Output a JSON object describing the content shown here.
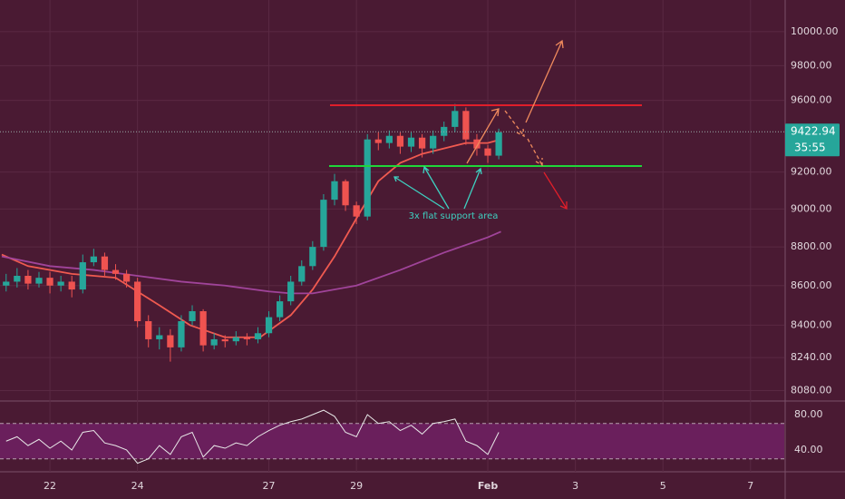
{
  "chart_data": [
    {
      "type": "candlestick",
      "x": [
        21.0,
        21.25,
        21.5,
        21.75,
        22.0,
        22.25,
        22.5,
        22.75,
        23.0,
        23.25,
        23.5,
        23.75,
        24.0,
        24.25,
        24.5,
        24.75,
        25.0,
        25.25,
        25.5,
        25.75,
        26.0,
        26.25,
        26.5,
        26.75,
        27.0,
        27.25,
        27.5,
        27.75,
        28.0,
        28.25,
        28.5,
        28.75,
        29.0,
        29.25,
        29.5,
        29.75,
        30.0,
        30.25,
        30.5,
        30.75,
        31.0,
        31.25,
        31.5,
        31.75,
        32.0,
        32.25
      ],
      "open": [
        8600,
        8620,
        8650,
        8610,
        8640,
        8600,
        8620,
        8580,
        8720,
        8750,
        8680,
        8660,
        8620,
        8420,
        8330,
        8350,
        8290,
        8420,
        8470,
        8300,
        8330,
        8320,
        8340,
        8330,
        8360,
        8440,
        8520,
        8620,
        8700,
        8800,
        9050,
        9150,
        9020,
        8960,
        9380,
        9360,
        9400,
        9340,
        9390,
        9330,
        9400,
        9450,
        9540,
        9380,
        9330,
        9290
      ],
      "high": [
        8660,
        8690,
        8680,
        8670,
        8670,
        8650,
        8650,
        8760,
        8790,
        8770,
        8710,
        8680,
        8640,
        8450,
        8390,
        8380,
        8450,
        8500,
        8480,
        8360,
        8350,
        8370,
        8360,
        8390,
        8470,
        8550,
        8650,
        8730,
        8830,
        9080,
        9190,
        9160,
        9040,
        9410,
        9420,
        9430,
        9420,
        9420,
        9410,
        9430,
        9480,
        9580,
        9560,
        9410,
        9350,
        9440
      ],
      "low": [
        8570,
        8590,
        8580,
        8590,
        8560,
        8570,
        8540,
        8560,
        8700,
        8650,
        8630,
        8590,
        8390,
        8290,
        8280,
        8220,
        8270,
        8400,
        8270,
        8280,
        8290,
        8300,
        8300,
        8310,
        8340,
        8420,
        8500,
        8600,
        8680,
        8780,
        9020,
        8990,
        8920,
        8940,
        9320,
        9330,
        9300,
        9310,
        9280,
        9300,
        9370,
        9420,
        9350,
        9290,
        9250,
        9270
      ],
      "close": [
        8620,
        8650,
        8610,
        8640,
        8600,
        8620,
        8580,
        8720,
        8750,
        8680,
        8660,
        8620,
        8420,
        8330,
        8350,
        8290,
        8420,
        8470,
        8300,
        8330,
        8320,
        8340,
        8330,
        8360,
        8440,
        8520,
        8620,
        8700,
        8800,
        9050,
        9150,
        9020,
        8960,
        9380,
        9360,
        9400,
        9340,
        9390,
        9330,
        9400,
        9450,
        9540,
        9380,
        9330,
        9290,
        9420
      ],
      "up_color": "#26a69a",
      "down_color": "#ef5350",
      "series": [
        {
          "color": "#f05a50",
          "x": [
            20.9,
            21.5,
            22.5,
            23.5,
            24.5,
            25.2,
            26,
            26.8,
            27.5,
            28,
            28.5,
            29,
            29.5,
            30,
            30.5,
            31,
            31.5,
            32,
            32.3
          ],
          "values": [
            8760,
            8700,
            8660,
            8640,
            8500,
            8400,
            8340,
            8340,
            8450,
            8580,
            8750,
            8950,
            9150,
            9250,
            9300,
            9330,
            9360,
            9360,
            9380
          ]
        },
        {
          "color": "#a0449a",
          "x": [
            20.9,
            22,
            23,
            24,
            25,
            26,
            27,
            27.5,
            28,
            29,
            30,
            31,
            32,
            32.3
          ],
          "values": [
            8750,
            8700,
            8680,
            8650,
            8620,
            8600,
            8570,
            8560,
            8560,
            8600,
            8680,
            8770,
            8850,
            8880
          ]
        }
      ],
      "log": true,
      "xlim": [
        20.86,
        38.77
      ],
      "ylim": [
        8030,
        10190
      ],
      "xticks": [
        22,
        24,
        27,
        29,
        {
          "value": 32,
          "label": "Feb"
        },
        {
          "value": 34,
          "label": "3"
        },
        {
          "value": 36,
          "label": "5"
        },
        {
          "value": 38,
          "label": "7"
        }
      ],
      "yticks": [
        {
          "value": 10000,
          "label": "10000.00"
        },
        {
          "value": 9800,
          "label": "9800.00"
        },
        {
          "value": 9600,
          "label": "9600.00"
        },
        {
          "value": 9200,
          "label": "9200.00"
        },
        {
          "value": 9000,
          "label": "9000.00"
        },
        {
          "value": 8800,
          "label": "8800.00"
        },
        {
          "value": 8600,
          "label": "8600.00"
        },
        {
          "value": 8400,
          "label": "8400.00"
        },
        {
          "value": 8240,
          "label": "8240.00"
        },
        {
          "value": 8080,
          "label": "8080.00"
        }
      ],
      "grid": true,
      "price_label": 9422.94,
      "countdown": "35:55",
      "annotation": "3x flat support area"
    },
    {
      "type": "line",
      "x": [
        21.0,
        21.25,
        21.5,
        21.75,
        22.0,
        22.25,
        22.5,
        22.75,
        23.0,
        23.25,
        23.5,
        23.75,
        24.0,
        24.25,
        24.5,
        24.75,
        25.0,
        25.25,
        25.5,
        25.75,
        26.0,
        26.25,
        26.5,
        26.75,
        27.0,
        27.25,
        27.5,
        27.75,
        28.0,
        28.25,
        28.5,
        28.75,
        29.0,
        29.25,
        29.5,
        29.75,
        30.0,
        30.25,
        30.5,
        30.75,
        31.0,
        31.25,
        31.5,
        31.75,
        32.0,
        32.25
      ],
      "values": [
        50,
        55,
        45,
        52,
        42,
        50,
        40,
        60,
        62,
        48,
        45,
        40,
        25,
        30,
        45,
        35,
        55,
        60,
        32,
        45,
        42,
        48,
        45,
        55,
        62,
        68,
        72,
        75,
        80,
        85,
        78,
        60,
        55,
        80,
        70,
        72,
        62,
        68,
        58,
        70,
        72,
        75,
        50,
        45,
        35,
        60
      ],
      "color": "#e8e8e8",
      "ylim": [
        17.4,
        92.3
      ],
      "yticks": [
        {
          "value": 80,
          "label": "80.00"
        },
        {
          "value": 40,
          "label": "40.00"
        }
      ],
      "bands": [
        30,
        70
      ]
    }
  ]
}
